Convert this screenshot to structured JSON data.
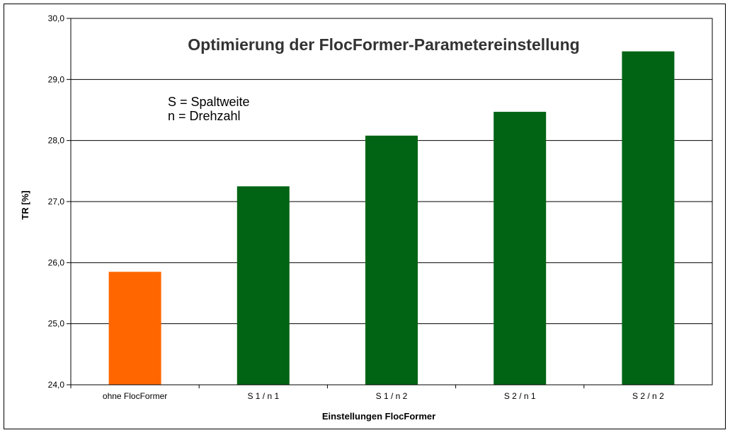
{
  "chart_data": {
    "type": "bar",
    "title": "Optimierung der FlocFormer-Parametereinstellung",
    "xlabel": "Einstellungen FlocFormer",
    "ylabel": "TR [%]",
    "ylim": [
      24.0,
      30.0
    ],
    "yticks": [
      "24,0",
      "25,0",
      "26,0",
      "27,0",
      "28,0",
      "29,0",
      "30,0"
    ],
    "categories": [
      "ohne FlocFormer",
      "S 1 / n 1",
      "S 1 / n 2",
      "S 2 / n 1",
      "S 2 / n 2"
    ],
    "values": [
      25.85,
      27.25,
      28.08,
      28.47,
      29.46
    ],
    "bar_colors": [
      "#ff6600",
      "#006414",
      "#006414",
      "#006414",
      "#006414"
    ],
    "grid": true,
    "annotations": [
      "S = Spaltweite",
      "n = Drehzahl"
    ]
  }
}
